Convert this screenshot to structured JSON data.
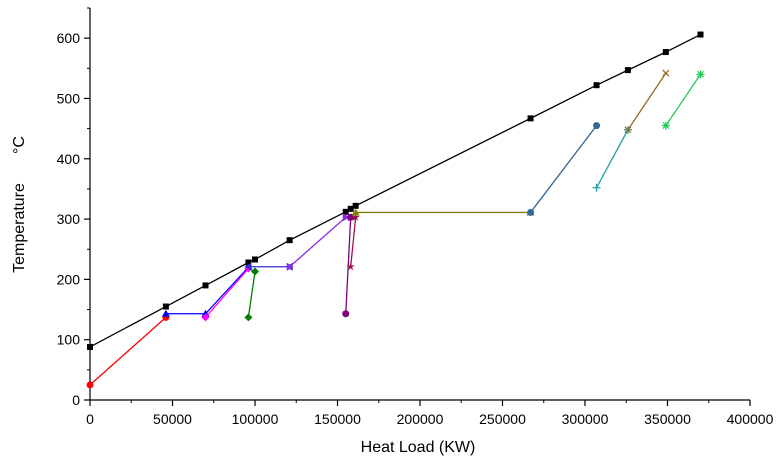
{
  "chart_data": {
    "type": "line",
    "title": "",
    "xlabel": "Heat Load (KW)",
    "ylabel_parts": [
      "Temperature",
      "°C"
    ],
    "xlim": [
      0,
      400000
    ],
    "ylim": [
      0,
      650
    ],
    "x_ticks": [
      0,
      50000,
      100000,
      150000,
      200000,
      250000,
      300000,
      350000,
      400000
    ],
    "x_tick_labels": [
      "0",
      "50000",
      "100000",
      "150000",
      "200000",
      "250000",
      "300000",
      "350000",
      "400000"
    ],
    "y_ticks": [
      0,
      100,
      200,
      300,
      400,
      500,
      600
    ],
    "y_tick_labels": [
      "0",
      "100",
      "200",
      "300",
      "400",
      "500",
      "600"
    ],
    "grid": false,
    "legend": "none",
    "series": [
      {
        "color": "#000000",
        "marker": "square",
        "points": [
          [
            0,
            88
          ],
          [
            46000,
            155
          ],
          [
            70000,
            190
          ],
          [
            96000,
            228
          ],
          [
            100000,
            233
          ],
          [
            121000,
            265
          ],
          [
            155000,
            312
          ],
          [
            158000,
            317
          ],
          [
            161000,
            322
          ],
          [
            267000,
            467
          ],
          [
            307000,
            522
          ],
          [
            326000,
            547
          ],
          [
            349000,
            577
          ],
          [
            370000,
            606
          ]
        ]
      },
      {
        "color": "#ff0000",
        "marker": "circle",
        "points": [
          [
            0,
            25
          ],
          [
            46000,
            137
          ]
        ]
      },
      {
        "color": "#0000ff",
        "marker": "triangle-up",
        "points": [
          [
            46000,
            143
          ],
          [
            70000,
            143
          ],
          [
            96000,
            220
          ]
        ]
      },
      {
        "color": "#ff00ff",
        "marker": "diamond",
        "points": [
          [
            70000,
            137
          ],
          [
            96000,
            218
          ]
        ]
      },
      {
        "color": "#008000",
        "marker": "diamond",
        "points": [
          [
            96000,
            137
          ],
          [
            100000,
            213
          ]
        ]
      },
      {
        "color": "#3333cc",
        "marker": "triangle-left",
        "points": [
          [
            96000,
            221
          ],
          [
            121000,
            221
          ]
        ]
      },
      {
        "color": "#8a2be2",
        "marker": "triangle-right",
        "points": [
          [
            121000,
            221
          ],
          [
            155000,
            303
          ],
          [
            158000,
            303
          ]
        ]
      },
      {
        "color": "#800080",
        "marker": "circle",
        "points": [
          [
            155000,
            143
          ],
          [
            158000,
            303
          ]
        ]
      },
      {
        "color": "#a0143c",
        "marker": "star",
        "points": [
          [
            158000,
            221
          ],
          [
            161000,
            303
          ]
        ]
      },
      {
        "color": "#808000",
        "marker": "triangle-up",
        "points": [
          [
            161000,
            311
          ],
          [
            267000,
            311
          ]
        ]
      },
      {
        "color": "#336699",
        "marker": "circle",
        "points": [
          [
            267000,
            311
          ],
          [
            307000,
            455
          ]
        ]
      },
      {
        "color": "#20a0a0",
        "marker": "plus",
        "points": [
          [
            307000,
            352
          ],
          [
            326000,
            448
          ]
        ]
      },
      {
        "color": "#a0662a",
        "marker": "cross",
        "points": [
          [
            326000,
            448
          ],
          [
            349000,
            542
          ]
        ]
      },
      {
        "color": "#22cc55",
        "marker": "asterisk",
        "points": [
          [
            349000,
            455
          ],
          [
            370000,
            540
          ]
        ]
      }
    ]
  }
}
